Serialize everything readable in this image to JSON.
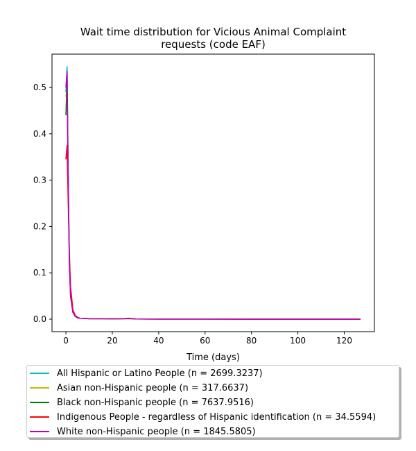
{
  "chart_data": {
    "type": "line",
    "title": "Wait time distribution  for Vicious Animal Complaint requests (code EAF)",
    "title_lines": [
      "Wait time distribution  for Vicious Animal Complaint",
      "requests (code EAF)"
    ],
    "xlabel": "Time (days)",
    "ylabel": "",
    "xlim": [
      -6,
      133
    ],
    "ylim": [
      -0.027,
      0.572
    ],
    "xticks": [
      0,
      20,
      40,
      60,
      80,
      100,
      120
    ],
    "yticks": [
      0.0,
      0.1,
      0.2,
      0.3,
      0.4,
      0.5
    ],
    "ytick_labels": [
      "0.0",
      "0.1",
      "0.2",
      "0.3",
      "0.4",
      "0.5"
    ],
    "grid": false,
    "legend_position": "below",
    "x": [
      0,
      0.5,
      1,
      1.5,
      2,
      3,
      4,
      5,
      6,
      8,
      10,
      12,
      15,
      20,
      25,
      27,
      30,
      40,
      60,
      80,
      100,
      127
    ],
    "series": [
      {
        "name": "All Hispanic or Latino People (n = 2699.3237)",
        "color": "#00bfbf",
        "values": [
          0.49,
          0.545,
          0.3,
          0.13,
          0.05,
          0.015,
          0.006,
          0.003,
          0.002,
          0.0015,
          0.001,
          0.001,
          0.001,
          0.0008,
          0.0008,
          0.001,
          0.0005,
          0.0003,
          0.0002,
          0.0001,
          0.0001,
          0.0
        ]
      },
      {
        "name": "Asian non-Hispanic people (n = 317.6637)",
        "color": "#bfbf00",
        "values": [
          0.48,
          0.5,
          0.29,
          0.12,
          0.05,
          0.015,
          0.006,
          0.004,
          0.002,
          0.0015,
          0.001,
          0.001,
          0.001,
          0.0008,
          0.001,
          0.001,
          0.0005,
          0.0003,
          0.0002,
          0.0001,
          0.0001,
          0.0
        ]
      },
      {
        "name": "Black non-Hispanic people (n = 7637.9516)",
        "color": "#008000",
        "values": [
          0.44,
          0.52,
          0.3,
          0.12,
          0.05,
          0.015,
          0.006,
          0.003,
          0.002,
          0.0015,
          0.001,
          0.001,
          0.001,
          0.0008,
          0.001,
          0.0015,
          0.0005,
          0.0003,
          0.0002,
          0.0001,
          0.0001,
          0.0
        ]
      },
      {
        "name": "Indigenous People - regardless of Hispanic identification (n = 34.5594)",
        "color": "#ff0000",
        "values": [
          0.345,
          0.375,
          0.25,
          0.14,
          0.07,
          0.02,
          0.008,
          0.004,
          0.002,
          0.0015,
          0.001,
          0.001,
          0.001,
          0.001,
          0.001,
          0.002,
          0.0005,
          0.0003,
          0.0002,
          0.0001,
          0.0001,
          0.0
        ]
      },
      {
        "name": "White non-Hispanic people (n = 1845.5805)",
        "color": "#bf00bf",
        "values": [
          0.5,
          0.535,
          0.3,
          0.12,
          0.05,
          0.015,
          0.006,
          0.003,
          0.002,
          0.0015,
          0.001,
          0.001,
          0.001,
          0.0008,
          0.001,
          0.0015,
          0.0005,
          0.0003,
          0.0002,
          0.0001,
          0.0001,
          0.0
        ]
      }
    ]
  }
}
